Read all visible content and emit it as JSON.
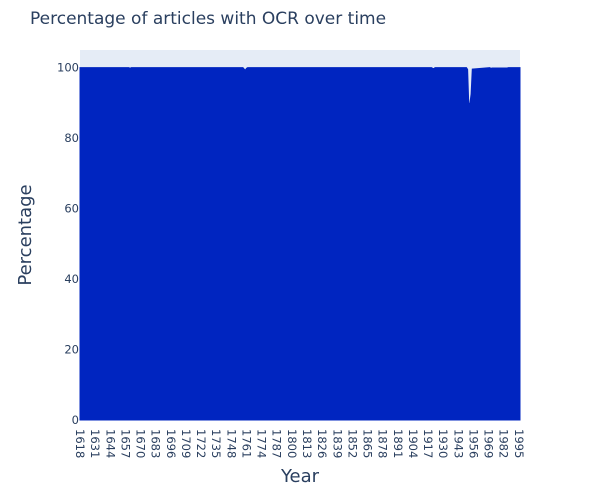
{
  "chart_data": {
    "type": "area",
    "title": "Percentage of articles with OCR over time",
    "xlabel": "Year",
    "ylabel": "Percentage",
    "xlim": [
      1618,
      1996
    ],
    "ylim": [
      0,
      105
    ],
    "x_tick_labels": [
      1618,
      1631,
      1644,
      1657,
      1670,
      1683,
      1696,
      1709,
      1722,
      1735,
      1748,
      1761,
      1774,
      1787,
      1800,
      1813,
      1826,
      1839,
      1852,
      1865,
      1878,
      1891,
      1904,
      1917,
      1930,
      1943,
      1956,
      1969,
      1982,
      1995
    ],
    "y_ticks": [
      0,
      20,
      40,
      60,
      80,
      100
    ],
    "grid": false,
    "legend": "none",
    "colors": {
      "fill": "#0025c0",
      "plot_bg": "#e5ecf6",
      "text": "#2a3f5f"
    },
    "series": [
      {
        "x": [
          1618,
          1660,
          1661,
          1662,
          1758,
          1759,
          1760,
          1761,
          1762,
          1920,
          1921,
          1922,
          1923,
          1950,
          1951,
          1952,
          1953,
          1954,
          1955,
          1970,
          1971,
          1972,
          1985,
          1986,
          1996
        ],
        "values": [
          100,
          100,
          99.8,
          100,
          100,
          99.6,
          99.3,
          99.8,
          100,
          100,
          99.8,
          99.7,
          100,
          100,
          99.5,
          89.5,
          90,
          92.5,
          99.6,
          100,
          99.8,
          99.9,
          99.9,
          100,
          100
        ]
      }
    ]
  }
}
